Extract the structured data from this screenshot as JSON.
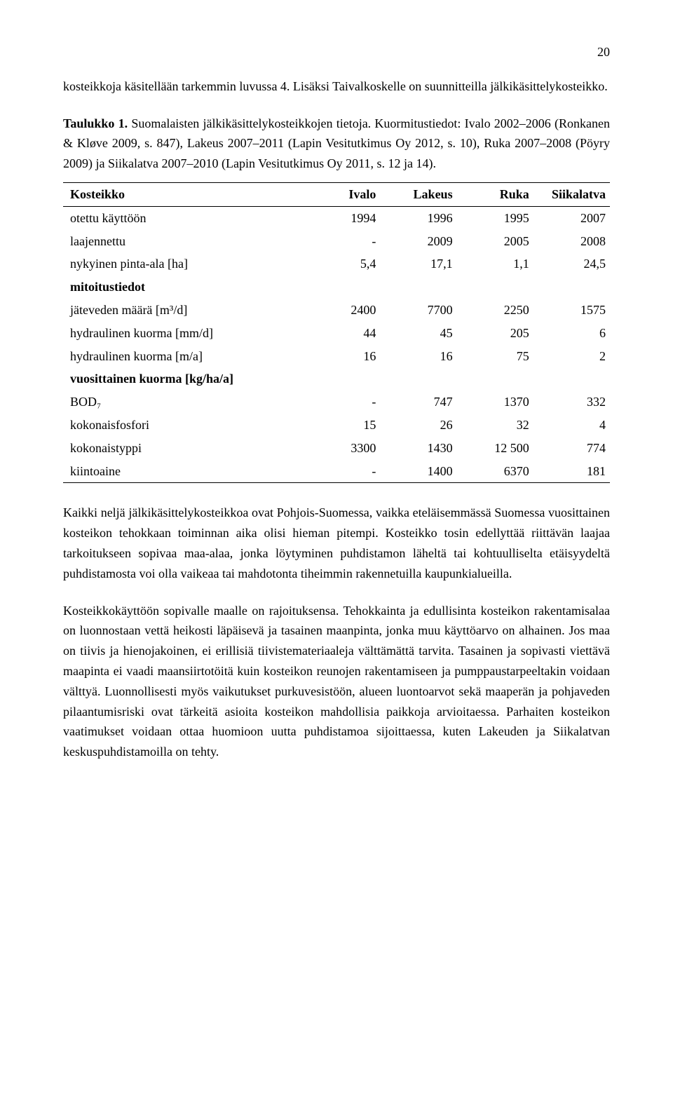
{
  "page_number": "20",
  "paragraphs": {
    "p1": "kosteikkoja käsitellään tarkemmin luvussa 4. Lisäksi Taivalkoskelle on suunnitteilla jälkikäsittelykosteikko.",
    "caption_bold": "Taulukko 1.",
    "caption_rest": " Suomalaisten jälkikäsittelykosteikkojen tietoja. Kuormitustiedot: Ivalo 2002–2006 (Ronkanen & Kløve 2009, s. 847), Lakeus 2007–2011 (Lapin Vesitutkimus Oy 2012, s. 10), Ruka 2007–2008 (Pöyry 2009) ja Siikalatva 2007–2010 (Lapin Vesitutkimus Oy 2011, s. 12 ja 14).",
    "p2": "Kaikki neljä jälkikäsittelykosteikkoa ovat Pohjois-Suomessa, vaikka eteläisemmässä Suomessa vuosittainen kosteikon tehokkaan toiminnan aika olisi hieman pitempi. Kosteikko tosin edellyttää riittävän laajaa tarkoitukseen sopivaa maa-alaa, jonka löytyminen puhdistamon läheltä tai kohtuulliselta etäisyydeltä puhdistamosta voi olla vaikeaa tai mahdotonta tiheimmin rakennetuilla kaupunkialueilla.",
    "p3": "Kosteikkokäyttöön sopivalle maalle on rajoituksensa. Tehokkainta ja edullisinta kosteikon rakentamisalaa on luonnostaan vettä heikosti läpäisevä ja tasainen maanpinta, jonka muu käyttöarvo on alhainen. Jos maa on tiivis ja hienojakoinen, ei erillisiä tiivistemateriaaleja välttämättä tarvita. Tasainen ja sopivasti viettävä maapinta ei vaadi maansiirtotöitä kuin kosteikon reunojen rakentamiseen ja pumppaustarpeeltakin voidaan välttyä. Luonnollisesti myös vaikutukset purkuvesistöön, alueen luontoarvot sekä maaperän ja pohjaveden pilaantumisriski ovat tärkeitä asioita kosteikon mahdollisia paikkoja arvioitaessa. Parhaiten kosteikon vaatimukset voidaan ottaa huomioon uutta puhdistamoa sijoittaessa, kuten Lakeuden ja Siikalatvan keskuspuhdistamoilla on tehty."
  },
  "table": {
    "columns": [
      "Kosteikko",
      "Ivalo",
      "Lakeus",
      "Ruka",
      "Siikalatva"
    ],
    "rows": [
      {
        "label": "otettu käyttöön",
        "vals": [
          "1994",
          "1996",
          "1995",
          "2007"
        ],
        "bold": false
      },
      {
        "label": "laajennettu",
        "vals": [
          "-",
          "2009",
          "2005",
          "2008"
        ],
        "bold": false
      },
      {
        "label": "nykyinen pinta-ala [ha]",
        "vals": [
          "5,4",
          "17,1",
          "1,1",
          "24,5"
        ],
        "bold": false
      },
      {
        "label": "mitoitustiedot",
        "vals": [
          "",
          "",
          "",
          ""
        ],
        "bold": true
      },
      {
        "label": "jäteveden määrä [m³/d]",
        "vals": [
          "2400",
          "7700",
          "2250",
          "1575"
        ],
        "bold": false
      },
      {
        "label": "hydraulinen kuorma [mm/d]",
        "vals": [
          "44",
          "45",
          "205",
          "6"
        ],
        "bold": false
      },
      {
        "label": "hydraulinen kuorma [m/a]",
        "vals": [
          "16",
          "16",
          "75",
          "2"
        ],
        "bold": false
      },
      {
        "label": "vuosittainen kuorma [kg/ha/a]",
        "vals": [
          "",
          "",
          "",
          ""
        ],
        "bold": true
      },
      {
        "label": "BOD₇",
        "vals": [
          "-",
          "747",
          "1370",
          "332"
        ],
        "bold": false
      },
      {
        "label": "kokonaisfosfori",
        "vals": [
          "15",
          "26",
          "32",
          "4"
        ],
        "bold": false
      },
      {
        "label": "kokonaistyppi",
        "vals": [
          "3300",
          "1430",
          "12 500",
          "774"
        ],
        "bold": false
      },
      {
        "label": "kiintoaine",
        "vals": [
          "-",
          "1400",
          "6370",
          "181"
        ],
        "bold": false
      }
    ],
    "col_widths": [
      "44%",
      "14%",
      "14%",
      "14%",
      "14%"
    ],
    "border_color": "#000000",
    "font_size": 18,
    "header_weight": "bold"
  }
}
